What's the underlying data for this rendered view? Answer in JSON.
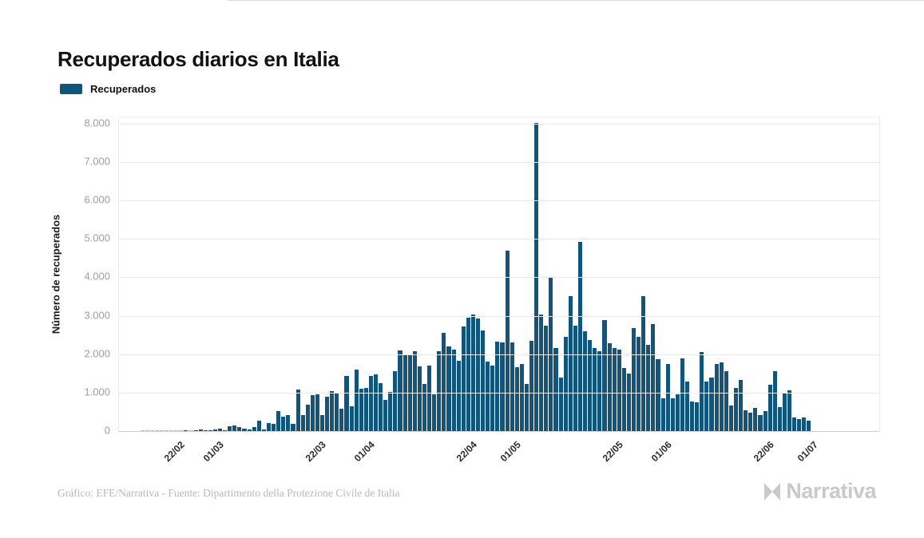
{
  "title": "Recuperados diarios en Italia",
  "legend": {
    "label": "Recuperados",
    "color": "#11557C"
  },
  "y_axis": {
    "title": "Número de recuperados",
    "ticks": [
      {
        "value": 0,
        "label": "0"
      },
      {
        "value": 1000,
        "label": "1.000"
      },
      {
        "value": 2000,
        "label": "2.000"
      },
      {
        "value": 3000,
        "label": "3.000"
      },
      {
        "value": 4000,
        "label": "4.000"
      },
      {
        "value": 5000,
        "label": "5.000"
      },
      {
        "value": 6000,
        "label": "6.000"
      },
      {
        "value": 7000,
        "label": "7.000"
      },
      {
        "value": 8000,
        "label": "8.000"
      }
    ]
  },
  "x_axis": {
    "ticks": [
      {
        "label": "22/02",
        "index": 7
      },
      {
        "label": "01/03",
        "index": 15
      },
      {
        "label": "22/03",
        "index": 36
      },
      {
        "label": "01/04",
        "index": 46
      },
      {
        "label": "22/04",
        "index": 67
      },
      {
        "label": "01/05",
        "index": 76
      },
      {
        "label": "22/05",
        "index": 97
      },
      {
        "label": "01/06",
        "index": 107
      },
      {
        "label": "22/06",
        "index": 128
      },
      {
        "label": "01/07",
        "index": 137
      }
    ]
  },
  "footer": {
    "credit": "Gráfico: EFE/Narrativa - Fuente: Dipartimento della Protezione Civile de Italia"
  },
  "watermark": "Narrativa",
  "chart_data": {
    "type": "bar",
    "title": "Recuperados diarios en Italia",
    "xlabel": "",
    "ylabel": "Número de recuperados",
    "ylim": [
      0,
      8174
    ],
    "grid": true,
    "legend_position": "top-left",
    "bar_color": "#11557C",
    "series_name": "Recuperados",
    "x": [
      "15/02",
      "16/02",
      "17/02",
      "18/02",
      "19/02",
      "20/02",
      "21/02",
      "22/02",
      "23/02",
      "24/02",
      "25/02",
      "26/02",
      "27/02",
      "28/02",
      "29/02",
      "01/03",
      "02/03",
      "03/03",
      "04/03",
      "05/03",
      "06/03",
      "07/03",
      "08/03",
      "09/03",
      "10/03",
      "11/03",
      "12/03",
      "13/03",
      "14/03",
      "15/03",
      "16/03",
      "17/03",
      "18/03",
      "19/03",
      "20/03",
      "21/03",
      "22/03",
      "23/03",
      "24/03",
      "25/03",
      "26/03",
      "27/03",
      "28/03",
      "29/03",
      "30/03",
      "31/03",
      "01/04",
      "02/04",
      "03/04",
      "04/04",
      "05/04",
      "06/04",
      "07/04",
      "08/04",
      "09/04",
      "10/04",
      "11/04",
      "12/04",
      "13/04",
      "14/04",
      "15/04",
      "16/04",
      "17/04",
      "18/04",
      "19/04",
      "20/04",
      "21/04",
      "22/04",
      "23/04",
      "24/04",
      "25/04",
      "26/04",
      "27/04",
      "28/04",
      "29/04",
      "30/04",
      "01/05",
      "02/05",
      "03/05",
      "04/05",
      "05/05",
      "06/05",
      "07/05",
      "08/05",
      "09/05",
      "10/05",
      "11/05",
      "12/05",
      "13/05",
      "14/05",
      "15/05",
      "16/05",
      "17/05",
      "18/05",
      "19/05",
      "20/05",
      "21/05",
      "22/05",
      "23/05",
      "24/05",
      "25/05",
      "26/05",
      "27/05",
      "28/05",
      "29/05",
      "30/05",
      "31/05",
      "01/06",
      "02/06",
      "03/06",
      "04/06",
      "05/06",
      "06/06",
      "07/06",
      "08/06",
      "09/06",
      "10/06",
      "11/06",
      "12/06",
      "13/06",
      "14/06",
      "15/06",
      "16/06",
      "17/06",
      "18/06",
      "19/06",
      "20/06",
      "21/06",
      "22/06",
      "23/06",
      "24/06",
      "25/06",
      "26/06",
      "27/06",
      "28/06",
      "29/06",
      "30/06",
      "01/07"
    ],
    "values": [
      0,
      0,
      0,
      0,
      0,
      0,
      0,
      0,
      0,
      1,
      0,
      2,
      42,
      1,
      4,
      33,
      66,
      11,
      116,
      138,
      109,
      66,
      33,
      102,
      280,
      41,
      213,
      181,
      527,
      369,
      414,
      192,
      1084,
      415,
      689,
      943,
      952,
      408,
      894,
      1036,
      999,
      589,
      1434,
      646,
      1590,
      1109,
      1118,
      1431,
      1480,
      1238,
      819,
      1022,
      1555,
      2099,
      1979,
      1985,
      2079,
      1677,
      1224,
      1695,
      962,
      2072,
      2563,
      2200,
      2128,
      1822,
      2723,
      2943,
      3033,
      2922,
      2622,
      1808,
      1696,
      2317,
      2311,
      4693,
      2304,
      1665,
      1740,
      1225,
      2352,
      8014,
      3031,
      2747,
      4008,
      2155,
      1401,
      2452,
      3502,
      2747,
      4917,
      2605,
      2366,
      2150,
      2075,
      2881,
      2278,
      2160,
      2120,
      1639,
      1502,
      2677,
      2443,
      3503,
      2240,
      2789,
      1874,
      848,
      1737,
      846,
      957,
      1886,
      1297,
      759,
      747,
      2062,
      1293,
      1399,
      1747,
      1780,
      1550,
      670,
      1125,
      1330,
      540,
      480,
      600,
      415,
      520,
      1210,
      1551,
      620,
      980,
      1050,
      345,
      307,
      345,
      280
    ]
  }
}
